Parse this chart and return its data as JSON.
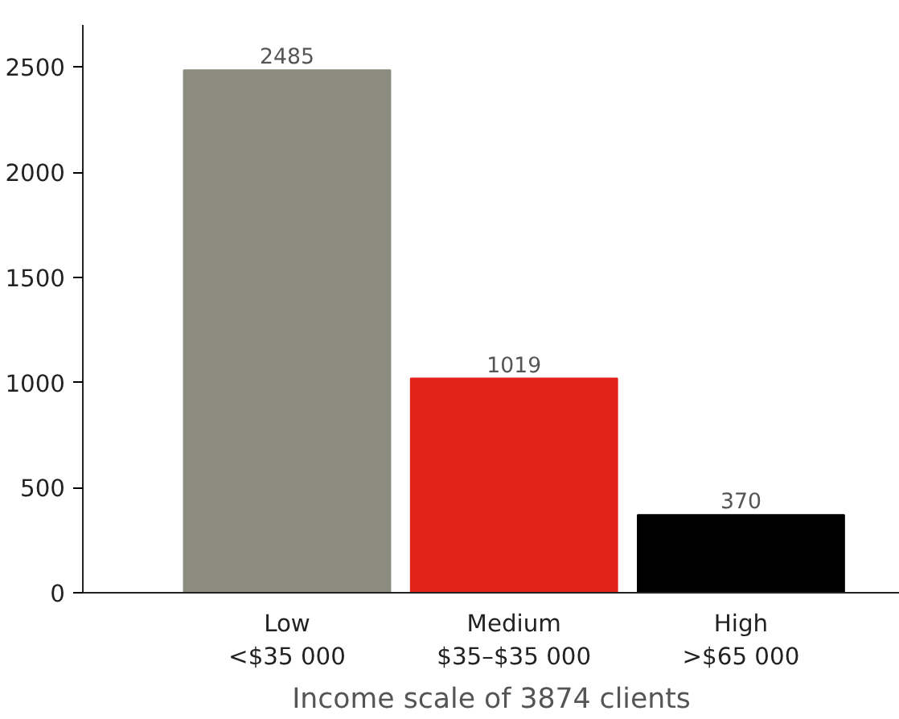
{
  "chart_data": {
    "type": "bar",
    "xlabel": "Income scale of 3874 clients",
    "categories": [
      "Low\n<$35 000",
      "Medium\n$35–$35 000",
      "High\n>$65 000"
    ],
    "values": [
      2485,
      1019,
      370
    ],
    "colors": [
      "#8c8b80",
      "#e2231a",
      "#000000"
    ],
    "ylim": [
      0,
      2700
    ],
    "yticks": [
      0,
      500,
      1000,
      1500,
      2000,
      2500
    ],
    "data_labels": true,
    "grid": false
  }
}
